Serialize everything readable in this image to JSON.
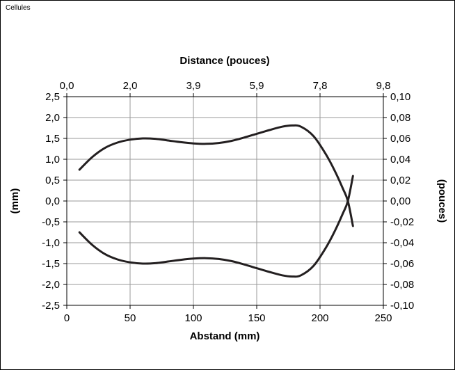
{
  "panel": {
    "title": "Cellules"
  },
  "chart_data": {
    "type": "line",
    "title": "",
    "x_axis_bottom": {
      "label": "Abstand (mm)",
      "range": [
        0,
        250
      ],
      "ticks": [
        0,
        50,
        100,
        150,
        200,
        250
      ],
      "tick_labels": [
        "0",
        "50",
        "100",
        "150",
        "200",
        "250"
      ]
    },
    "x_axis_top": {
      "label": "Distance (pouces)",
      "tick_labels": [
        "0,0",
        "2,0",
        "3,9",
        "5,9",
        "7,8",
        "9,8"
      ]
    },
    "y_axis_left": {
      "label": "(mm)",
      "range": [
        -2.5,
        2.5
      ],
      "ticks": [
        2.5,
        2.0,
        1.5,
        1.0,
        0.5,
        0.0,
        -0.5,
        -1.0,
        -1.5,
        -2.0,
        -2.5
      ],
      "tick_labels": [
        "2,5",
        "2,0",
        "1,5",
        "1,0",
        "0,5",
        "0,0",
        "-0,5",
        "-1,0",
        "-1,5",
        "-2,0",
        "-2,5"
      ]
    },
    "y_axis_right": {
      "label": "(pouces)",
      "tick_labels": [
        "0,10",
        "0,08",
        "0,06",
        "0,04",
        "0,02",
        "0,00",
        "-0,02",
        "-0,04",
        "-0,06",
        "-0,08",
        "-0,10"
      ]
    },
    "grid": true,
    "legend": "none",
    "line_color": "#231f20",
    "series": [
      {
        "x": [
          10,
          20,
          30,
          40,
          50,
          60,
          70,
          80,
          90,
          100,
          110,
          120,
          130,
          140,
          150,
          160,
          170,
          178,
          185,
          195,
          205,
          212,
          218,
          222,
          226
        ],
        "y": [
          0.75,
          1.05,
          1.27,
          1.4,
          1.47,
          1.5,
          1.49,
          1.45,
          1.41,
          1.38,
          1.37,
          1.39,
          1.44,
          1.52,
          1.61,
          1.7,
          1.78,
          1.81,
          1.78,
          1.55,
          1.1,
          0.7,
          0.3,
          0.0,
          -0.6
        ]
      },
      {
        "x": [
          10,
          20,
          30,
          40,
          50,
          60,
          70,
          80,
          90,
          100,
          110,
          120,
          130,
          140,
          150,
          160,
          170,
          178,
          185,
          195,
          205,
          212,
          218,
          222,
          226
        ],
        "y": [
          -0.75,
          -1.05,
          -1.27,
          -1.4,
          -1.47,
          -1.5,
          -1.49,
          -1.45,
          -1.41,
          -1.38,
          -1.37,
          -1.39,
          -1.44,
          -1.52,
          -1.61,
          -1.7,
          -1.78,
          -1.81,
          -1.78,
          -1.55,
          -1.1,
          -0.7,
          -0.3,
          0.0,
          0.6
        ]
      }
    ]
  }
}
